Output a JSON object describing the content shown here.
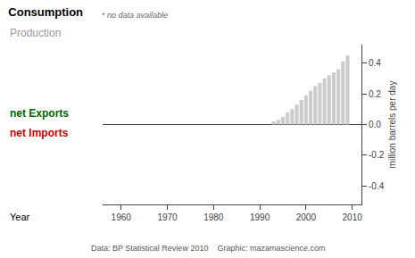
{
  "chart_data": {
    "type": "bar",
    "title": "Consumption",
    "annotations": [
      {
        "text": "* no data available",
        "color": "#666666"
      },
      {
        "text": "Production",
        "color": "#999999"
      },
      {
        "text": "net Exports",
        "color": "#006600"
      },
      {
        "text": "net Imports",
        "color": "#cc0000"
      },
      {
        "text": "Data: BP Statistical Review 2010    Graphic: mazamascience.com",
        "color": "#555555"
      }
    ],
    "x_label": "Year",
    "y_label": "million barrels per day",
    "x": [
      1993,
      1994,
      1995,
      1996,
      1997,
      1998,
      1999,
      2000,
      2001,
      2002,
      2003,
      2004,
      2005,
      2006,
      2007,
      2008,
      2009
    ],
    "values": [
      0.02,
      0.03,
      0.05,
      0.08,
      0.1,
      0.13,
      0.16,
      0.19,
      0.22,
      0.25,
      0.27,
      0.3,
      0.32,
      0.34,
      0.36,
      0.41,
      0.45
    ],
    "color": "#cccccc",
    "xlim": [
      1956,
      2012
    ],
    "xticks": [
      1960,
      1970,
      1980,
      1990,
      2000,
      2010
    ],
    "ylim": [
      -0.52,
      0.52
    ],
    "yticks": [
      -0.4,
      -0.2,
      {
        "value": 0.0,
        "label": "0.0"
      },
      0.2,
      0.4
    ],
    "grid": false
  }
}
